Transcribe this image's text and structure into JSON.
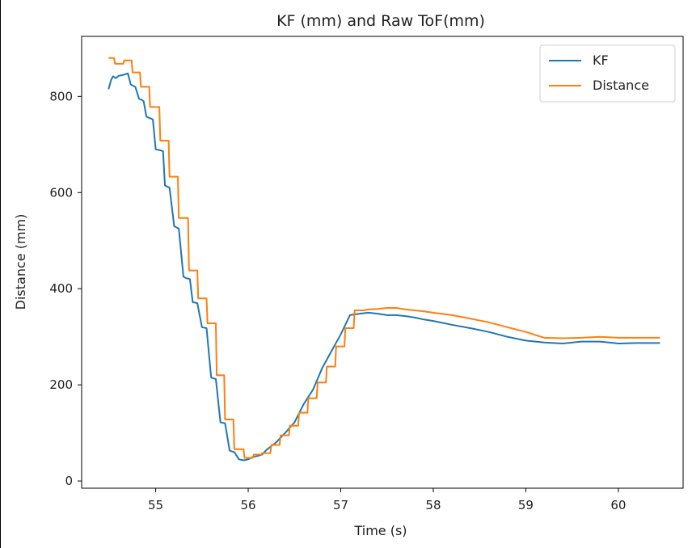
{
  "chart_data": {
    "type": "line",
    "title": "KF (mm) and Raw ToF(mm)",
    "xlabel": "Time (s)",
    "ylabel": "Distance (mm)",
    "xlim": [
      54.2,
      60.7
    ],
    "ylim": [
      -15,
      925
    ],
    "xticks": [
      55,
      56,
      57,
      58,
      59,
      60
    ],
    "yticks": [
      0,
      200,
      400,
      600,
      800
    ],
    "grid": false,
    "legend": "top-right",
    "colors": {
      "KF": "#1f77b4",
      "Distance": "#ff7f0e"
    },
    "series": [
      {
        "name": "KF",
        "x": [
          54.49,
          54.52,
          54.54,
          54.57,
          54.6,
          54.65,
          54.7,
          54.73,
          54.75,
          54.78,
          54.82,
          54.85,
          54.87,
          54.9,
          54.95,
          54.97,
          55.0,
          55.05,
          55.08,
          55.1,
          55.15,
          55.2,
          55.22,
          55.25,
          55.3,
          55.33,
          55.37,
          55.4,
          55.45,
          55.5,
          55.55,
          55.6,
          55.65,
          55.7,
          55.75,
          55.8,
          55.85,
          55.9,
          55.95,
          56.0,
          56.05,
          56.1,
          56.15,
          56.2,
          56.3,
          56.4,
          56.5,
          56.6,
          56.7,
          56.8,
          56.9,
          57.0,
          57.1,
          57.2,
          57.3,
          57.4,
          57.5,
          57.6,
          57.7,
          57.8,
          57.9,
          58.0,
          58.2,
          58.4,
          58.6,
          58.8,
          59.0,
          59.2,
          59.4,
          59.6,
          59.8,
          60.0,
          60.2,
          60.45
        ],
        "y": [
          815,
          835,
          842,
          838,
          843,
          845,
          848,
          825,
          823,
          820,
          795,
          793,
          790,
          758,
          754,
          752,
          690,
          688,
          686,
          615,
          610,
          530,
          528,
          525,
          425,
          422,
          420,
          372,
          370,
          320,
          318,
          215,
          212,
          122,
          120,
          63,
          60,
          45,
          43,
          45,
          50,
          52,
          55,
          65,
          80,
          100,
          122,
          160,
          190,
          235,
          270,
          305,
          345,
          348,
          350,
          348,
          345,
          345,
          343,
          340,
          336,
          333,
          325,
          318,
          310,
          300,
          292,
          288,
          286,
          290,
          290,
          286,
          287,
          287
        ]
      },
      {
        "name": "Distance",
        "x": [
          54.49,
          54.55,
          54.56,
          54.65,
          54.66,
          54.74,
          54.75,
          54.83,
          54.84,
          54.93,
          54.94,
          55.04,
          55.05,
          55.14,
          55.15,
          55.24,
          55.25,
          55.35,
          55.36,
          55.45,
          55.46,
          55.55,
          55.56,
          55.65,
          55.66,
          55.74,
          55.75,
          55.84,
          55.85,
          55.95,
          55.96,
          56.05,
          56.06,
          56.14,
          56.15,
          56.24,
          56.25,
          56.34,
          56.35,
          56.44,
          56.45,
          56.54,
          56.55,
          56.64,
          56.65,
          56.74,
          56.75,
          56.84,
          56.85,
          56.94,
          56.95,
          57.04,
          57.05,
          57.14,
          57.15,
          57.24,
          57.25,
          57.3,
          57.4,
          57.5,
          57.6,
          57.7,
          57.8,
          57.9,
          58.0,
          58.2,
          58.4,
          58.6,
          58.8,
          59.0,
          59.2,
          59.4,
          59.6,
          59.8,
          60.0,
          60.2,
          60.45
        ],
        "y": [
          880,
          880,
          868,
          868,
          875,
          875,
          850,
          850,
          820,
          820,
          778,
          778,
          708,
          708,
          633,
          633,
          547,
          547,
          438,
          438,
          380,
          380,
          328,
          328,
          220,
          220,
          128,
          128,
          66,
          66,
          48,
          48,
          55,
          55,
          58,
          58,
          75,
          75,
          95,
          95,
          115,
          115,
          142,
          142,
          172,
          172,
          205,
          205,
          238,
          238,
          280,
          280,
          318,
          318,
          355,
          355,
          355,
          357,
          358,
          360,
          360,
          357,
          355,
          353,
          350,
          345,
          338,
          330,
          320,
          310,
          298,
          297,
          298,
          300,
          298,
          298,
          298
        ]
      }
    ]
  }
}
